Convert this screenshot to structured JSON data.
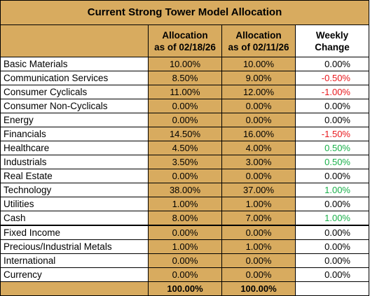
{
  "title": "Current Strong Tower Model Allocation",
  "headers": {
    "col1_line1": "Allocation",
    "col1_line2": "as of 02/18/26",
    "col2_line1": "Allocation",
    "col2_line2": "as of 02/11/26",
    "col3_line1": "Weekly",
    "col3_line2": "Change"
  },
  "rows": [
    {
      "name": "Basic Materials",
      "current": "10.00%",
      "previous": "10.00%",
      "change": "0.00%",
      "trend": "neutral"
    },
    {
      "name": "Communication Services",
      "current": "8.50%",
      "previous": "9.00%",
      "change": "-0.50%",
      "trend": "negative"
    },
    {
      "name": "Consumer Cyclicals",
      "current": "11.00%",
      "previous": "12.00%",
      "change": "-1.00%",
      "trend": "negative"
    },
    {
      "name": "Consumer Non-Cyclicals",
      "current": "0.00%",
      "previous": "0.00%",
      "change": "0.00%",
      "trend": "neutral"
    },
    {
      "name": "Energy",
      "current": "0.00%",
      "previous": "0.00%",
      "change": "0.00%",
      "trend": "neutral"
    },
    {
      "name": "Financials",
      "current": "14.50%",
      "previous": "16.00%",
      "change": "-1.50%",
      "trend": "negative"
    },
    {
      "name": "Healthcare",
      "current": "4.50%",
      "previous": "4.00%",
      "change": "0.50%",
      "trend": "positive"
    },
    {
      "name": "Industrials",
      "current": "3.50%",
      "previous": "3.00%",
      "change": "0.50%",
      "trend": "positive"
    },
    {
      "name": "Real Estate",
      "current": "0.00%",
      "previous": "0.00%",
      "change": "0.00%",
      "trend": "neutral"
    },
    {
      "name": "Technology",
      "current": "38.00%",
      "previous": "37.00%",
      "change": "1.00%",
      "trend": "positive"
    },
    {
      "name": "Utilities",
      "current": "1.00%",
      "previous": "1.00%",
      "change": "0.00%",
      "trend": "neutral"
    },
    {
      "name": "Cash",
      "current": "8.00%",
      "previous": "7.00%",
      "change": "1.00%",
      "trend": "positive"
    },
    {
      "name": "Fixed Income",
      "current": "0.00%",
      "previous": "0.00%",
      "change": "0.00%",
      "trend": "neutral"
    },
    {
      "name": "Precious/Industrial Metals",
      "current": "1.00%",
      "previous": "1.00%",
      "change": "0.00%",
      "trend": "neutral"
    },
    {
      "name": "International",
      "current": "0.00%",
      "previous": "0.00%",
      "change": "0.00%",
      "trend": "neutral"
    },
    {
      "name": "Currency",
      "current": "0.00%",
      "previous": "0.00%",
      "change": "0.00%",
      "trend": "neutral"
    }
  ],
  "totals": {
    "current": "100.00%",
    "previous": "100.00%"
  },
  "colors": {
    "header_fill": "#d8ab5f",
    "negative": "#e8171c",
    "positive": "#19b04a",
    "neutral": "#000000"
  }
}
